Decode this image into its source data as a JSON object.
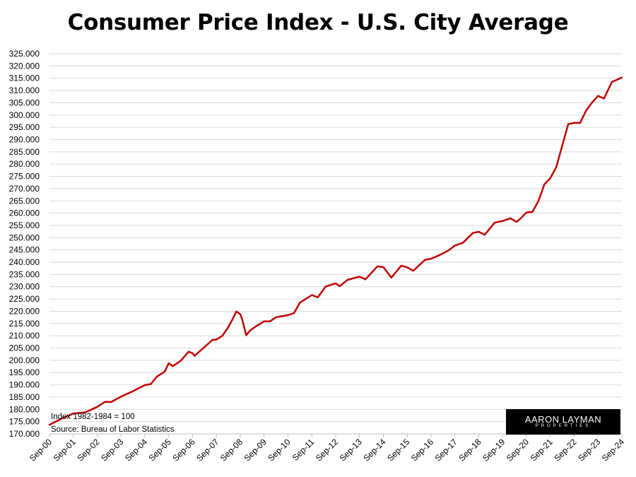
{
  "chart_data": {
    "type": "line",
    "title": "Consumer Price Index - U.S. City Average",
    "xlabel": "",
    "ylabel": "",
    "ylim": [
      170,
      325
    ],
    "yticks": [
      "170.000",
      "175.000",
      "180.000",
      "185.000",
      "190.000",
      "195.000",
      "200.000",
      "205.000",
      "210.000",
      "215.000",
      "220.000",
      "225.000",
      "230.000",
      "235.000",
      "240.000",
      "245.000",
      "250.000",
      "255.000",
      "260.000",
      "265.000",
      "270.000",
      "275.000",
      "280.000",
      "285.000",
      "290.000",
      "295.000",
      "300.000",
      "305.000",
      "310.000",
      "315.000",
      "320.000",
      "325.000"
    ],
    "categories": [
      "Sep-00",
      "Sep-01",
      "Sep-02",
      "Sep-03",
      "Sep-04",
      "Sep-05",
      "Sep-06",
      "Sep-07",
      "Sep-08",
      "Sep-09",
      "Sep-10",
      "Sep-11",
      "Sep-12",
      "Sep-13",
      "Sep-14",
      "Sep-15",
      "Sep-16",
      "Sep-17",
      "Sep-18",
      "Sep-19",
      "Sep-20",
      "Sep-21",
      "Sep-22",
      "Sep-23",
      "Sep-24"
    ],
    "grid": true,
    "series": [
      {
        "color": "#c00000",
        "points": [
          [
            "Sep-00",
            173.7
          ],
          [
            "Mar-01",
            176.2
          ],
          [
            "Sep-01",
            178.3
          ],
          [
            "Mar-02",
            178.8
          ],
          [
            "Sep-02",
            181.0
          ],
          [
            "Jan-03",
            183.1
          ],
          [
            "Apr-03",
            183.0
          ],
          [
            "Sep-03",
            185.2
          ],
          [
            "Mar-04",
            187.4
          ],
          [
            "Sep-04",
            189.9
          ],
          [
            "Dec-04",
            190.3
          ],
          [
            "Mar-05",
            193.3
          ],
          [
            "Jul-05",
            195.4
          ],
          [
            "Sep-05",
            198.8
          ],
          [
            "Nov-05",
            197.6
          ],
          [
            "Mar-06",
            199.8
          ],
          [
            "Jul-06",
            203.5
          ],
          [
            "Sep-06",
            202.9
          ],
          [
            "Oct-06",
            201.8
          ],
          [
            "Mar-07",
            205.4
          ],
          [
            "Jul-07",
            208.3
          ],
          [
            "Sep-07",
            208.5
          ],
          [
            "Dec-07",
            210.0
          ],
          [
            "Mar-08",
            213.5
          ],
          [
            "May-08",
            216.6
          ],
          [
            "Jul-08",
            219.9
          ],
          [
            "Sep-08",
            218.8
          ],
          [
            "Oct-08",
            216.6
          ],
          [
            "Dec-08",
            210.2
          ],
          [
            "Feb-09",
            212.2
          ],
          [
            "May-09",
            213.9
          ],
          [
            "Sep-09",
            215.9
          ],
          [
            "Dec-09",
            215.9
          ],
          [
            "Mar-10",
            217.6
          ],
          [
            "Sep-10",
            218.4
          ],
          [
            "Dec-10",
            219.2
          ],
          [
            "Mar-11",
            223.5
          ],
          [
            "Sep-11",
            226.6
          ],
          [
            "Dec-11",
            225.7
          ],
          [
            "Apr-12",
            230.1
          ],
          [
            "Sep-12",
            231.4
          ],
          [
            "Nov-12",
            230.2
          ],
          [
            "Mar-13",
            232.8
          ],
          [
            "Sep-13",
            234.1
          ],
          [
            "Dec-13",
            233.0
          ],
          [
            "Jun-14",
            238.3
          ],
          [
            "Sep-14",
            238.0
          ],
          [
            "Jan-15",
            233.7
          ],
          [
            "Jun-15",
            238.6
          ],
          [
            "Sep-15",
            237.9
          ],
          [
            "Dec-15",
            236.5
          ],
          [
            "Jun-16",
            241.0
          ],
          [
            "Sep-16",
            241.4
          ],
          [
            "Jan-17",
            242.8
          ],
          [
            "Jun-17",
            244.9
          ],
          [
            "Sep-17",
            246.8
          ],
          [
            "Jan-18",
            247.9
          ],
          [
            "Jun-18",
            251.9
          ],
          [
            "Sep-18",
            252.4
          ],
          [
            "Dec-18",
            251.2
          ],
          [
            "May-19",
            256.1
          ],
          [
            "Sep-19",
            256.8
          ],
          [
            "Jan-20",
            257.9
          ],
          [
            "Apr-20",
            256.4
          ],
          [
            "Jun-20",
            257.8
          ],
          [
            "Sep-20",
            260.3
          ],
          [
            "Dec-20",
            260.5
          ],
          [
            "Mar-21",
            264.9
          ],
          [
            "Jun-21",
            271.7
          ],
          [
            "Sep-21",
            274.3
          ],
          [
            "Dec-21",
            278.8
          ],
          [
            "Mar-22",
            287.5
          ],
          [
            "Jun-22",
            296.3
          ],
          [
            "Sep-22",
            296.8
          ],
          [
            "Dec-22",
            296.8
          ],
          [
            "Mar-23",
            301.8
          ],
          [
            "Jun-23",
            305.1
          ],
          [
            "Sep-23",
            307.8
          ],
          [
            "Dec-23",
            306.7
          ],
          [
            "Apr-24",
            313.5
          ],
          [
            "Jun-24",
            314.2
          ],
          [
            "Sep-24",
            315.3
          ]
        ]
      }
    ],
    "annotations": [
      "Index 1982-1984 = 100",
      "Source: Bureau of Labor Statistics"
    ]
  },
  "logo": {
    "line1": "AARON LAYMAN",
    "line2": "PROPERTIES"
  }
}
